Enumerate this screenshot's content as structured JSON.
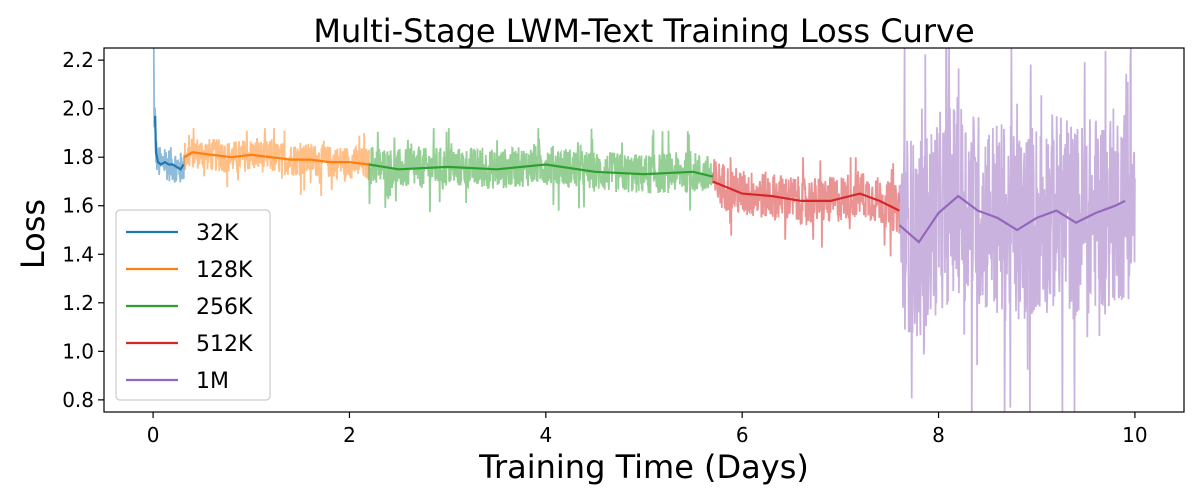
{
  "chart_data": {
    "type": "line",
    "title": "Multi-Stage LWM-Text Training Loss Curve",
    "xlabel": "Training Time (Days)",
    "ylabel": "Loss",
    "xlim": [
      -0.5,
      10.5
    ],
    "ylim": [
      0.75,
      2.25
    ],
    "xticks": [
      0,
      2,
      4,
      6,
      8,
      10
    ],
    "yticks": [
      0.8,
      1.0,
      1.2,
      1.4,
      1.6,
      1.8,
      2.0,
      2.2
    ],
    "ytick_labels": [
      "0.8",
      "1.0",
      "1.2",
      "1.4",
      "1.6",
      "1.8",
      "2.0",
      "2.2"
    ],
    "grid": false,
    "legend_position": "lower-left",
    "series": [
      {
        "name": "32K",
        "color": "#1f77b4",
        "smoothed": {
          "x": [
            0.02,
            0.03,
            0.05,
            0.08,
            0.12,
            0.16,
            0.2,
            0.24,
            0.28,
            0.31
          ],
          "y": [
            1.97,
            1.82,
            1.78,
            1.77,
            1.78,
            1.77,
            1.77,
            1.76,
            1.75,
            1.77
          ]
        },
        "raw_envelope": {
          "x_range": [
            0.0,
            0.32
          ],
          "low": 1.64,
          "high": 2.25
        }
      },
      {
        "name": "128K",
        "color": "#ff7f0e",
        "smoothed": {
          "x": [
            0.32,
            0.4,
            0.6,
            0.8,
            1.0,
            1.2,
            1.4,
            1.6,
            1.8,
            2.0,
            2.2
          ],
          "y": [
            1.8,
            1.82,
            1.81,
            1.8,
            1.81,
            1.8,
            1.79,
            1.79,
            1.78,
            1.78,
            1.77
          ]
        },
        "raw_envelope": {
          "x_range": [
            0.32,
            2.2
          ],
          "low": 1.58,
          "high": 1.92
        }
      },
      {
        "name": "256K",
        "color": "#2ca02c",
        "smoothed": {
          "x": [
            2.2,
            2.5,
            3.0,
            3.5,
            4.0,
            4.5,
            5.0,
            5.5,
            5.7
          ],
          "y": [
            1.77,
            1.75,
            1.76,
            1.75,
            1.77,
            1.74,
            1.73,
            1.74,
            1.72
          ]
        },
        "raw_envelope": {
          "x_range": [
            2.2,
            5.7
          ],
          "low": 1.47,
          "high": 1.92
        }
      },
      {
        "name": "512K",
        "color": "#d62728",
        "smoothed": {
          "x": [
            5.7,
            6.0,
            6.3,
            6.6,
            6.9,
            7.2,
            7.4,
            7.6
          ],
          "y": [
            1.7,
            1.65,
            1.64,
            1.62,
            1.62,
            1.65,
            1.62,
            1.58
          ]
        },
        "raw_envelope": {
          "x_range": [
            5.7,
            7.6
          ],
          "low": 1.32,
          "high": 1.8
        }
      },
      {
        "name": "1M",
        "color": "#9467bd",
        "smoothed": {
          "x": [
            7.6,
            7.8,
            8.0,
            8.2,
            8.4,
            8.6,
            8.8,
            9.0,
            9.2,
            9.4,
            9.6,
            9.8,
            9.9
          ],
          "y": [
            1.52,
            1.45,
            1.57,
            1.64,
            1.58,
            1.55,
            1.5,
            1.55,
            1.58,
            1.53,
            1.57,
            1.6,
            1.62
          ]
        },
        "raw_envelope": {
          "x_range": [
            7.6,
            10.0
          ],
          "low": 0.75,
          "high": 2.25
        }
      }
    ]
  }
}
